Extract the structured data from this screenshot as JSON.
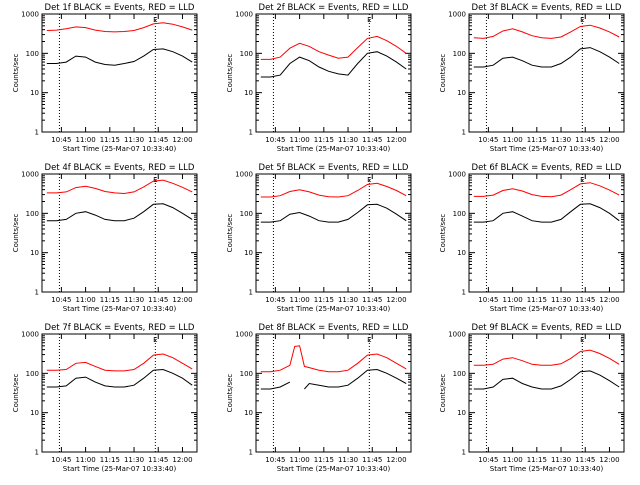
{
  "chart_data": {
    "type": "line",
    "layout": "3x3 grid of panels",
    "y_scale": "log",
    "ylim": [
      1,
      1000
    ],
    "y_ticks": [
      "1",
      "10",
      "100",
      "1000"
    ],
    "x_ticks": [
      "10:45",
      "11:00",
      "11:15",
      "11:30",
      "11:45",
      "12:00"
    ],
    "x_tick_hours": [
      10.75,
      11.0,
      11.25,
      11.5,
      11.75,
      12.0
    ],
    "xlim": [
      10.55,
      12.15
    ],
    "ylabel": "Counts/sec",
    "xlabel": "Start Time (25-Mar-07 10:33:40)",
    "grid": false,
    "colors": {
      "events": "#000000",
      "lld": "#ff0000"
    },
    "panels": [
      {
        "title": "Det 1f BLACK = Events, RED = LLD",
        "vlines": [
          10.73,
          11.72
        ],
        "flag": "E",
        "flag_x": 11.72,
        "x": [
          10.6,
          10.7,
          10.8,
          10.9,
          11.0,
          11.1,
          11.2,
          11.3,
          11.4,
          11.5,
          11.6,
          11.7,
          11.8,
          11.9,
          12.0,
          12.1
        ],
        "events": [
          55,
          55,
          60,
          85,
          80,
          60,
          52,
          50,
          55,
          62,
          85,
          125,
          130,
          110,
          85,
          60
        ],
        "lld": [
          380,
          390,
          420,
          470,
          450,
          390,
          360,
          350,
          360,
          380,
          450,
          560,
          600,
          550,
          470,
          390
        ]
      },
      {
        "title": "Det 2f BLACK = Events, RED = LLD",
        "vlines": [
          10.73,
          11.72
        ],
        "flag": "E",
        "flag_x": 11.72,
        "x": [
          10.6,
          10.7,
          10.8,
          10.9,
          11.0,
          11.1,
          11.2,
          11.3,
          11.4,
          11.5,
          11.6,
          11.7,
          11.8,
          11.9,
          12.0,
          12.1
        ],
        "events": [
          25,
          25,
          28,
          55,
          80,
          65,
          45,
          35,
          30,
          28,
          55,
          100,
          110,
          85,
          60,
          40
        ],
        "lld": [
          70,
          70,
          80,
          135,
          180,
          150,
          110,
          90,
          75,
          80,
          140,
          240,
          270,
          210,
          150,
          100
        ]
      },
      {
        "title": "Det 3f BLACK = Events, RED = LLD",
        "vlines": [
          10.73,
          11.72
        ],
        "flag": "E",
        "flag_x": 11.72,
        "x": [
          10.6,
          10.7,
          10.8,
          10.9,
          11.0,
          11.1,
          11.2,
          11.3,
          11.4,
          11.5,
          11.6,
          11.7,
          11.8,
          11.9,
          12.0,
          12.1
        ],
        "events": [
          45,
          45,
          50,
          75,
          80,
          65,
          50,
          45,
          45,
          55,
          80,
          130,
          140,
          110,
          80,
          55
        ],
        "lld": [
          250,
          240,
          270,
          370,
          420,
          350,
          280,
          250,
          240,
          260,
          350,
          480,
          520,
          440,
          350,
          260
        ]
      },
      {
        "title": "Det 4f BLACK = Events, RED = LLD",
        "vlines": [
          10.73,
          11.72
        ],
        "flag": "E",
        "flag_x": 11.72,
        "x": [
          10.6,
          10.7,
          10.8,
          10.9,
          11.0,
          11.1,
          11.2,
          11.3,
          11.4,
          11.5,
          11.6,
          11.7,
          11.8,
          11.9,
          12.0,
          12.1
        ],
        "events": [
          65,
          65,
          70,
          100,
          110,
          90,
          70,
          65,
          65,
          75,
          110,
          170,
          175,
          140,
          100,
          70
        ],
        "lld": [
          330,
          330,
          350,
          450,
          490,
          430,
          360,
          330,
          320,
          350,
          470,
          660,
          700,
          580,
          460,
          350
        ]
      },
      {
        "title": "Det 5f BLACK = Events, RED = LLD",
        "vlines": [
          10.73,
          11.72
        ],
        "flag": "E",
        "flag_x": 11.72,
        "x": [
          10.6,
          10.7,
          10.8,
          10.9,
          11.0,
          11.1,
          11.2,
          11.3,
          11.4,
          11.5,
          11.6,
          11.7,
          11.8,
          11.9,
          12.0,
          12.1
        ],
        "events": [
          60,
          60,
          65,
          95,
          105,
          85,
          65,
          60,
          60,
          70,
          105,
          165,
          170,
          135,
          95,
          65
        ],
        "lld": [
          260,
          260,
          280,
          360,
          400,
          350,
          290,
          265,
          260,
          280,
          380,
          540,
          580,
          480,
          380,
          280
        ]
      },
      {
        "title": "Det 6f BLACK = Events, RED = LLD",
        "vlines": [
          10.73,
          11.72
        ],
        "flag": "E",
        "flag_x": 11.72,
        "x": [
          10.6,
          10.7,
          10.8,
          10.9,
          11.0,
          11.1,
          11.2,
          11.3,
          11.4,
          11.5,
          11.6,
          11.7,
          11.8,
          11.9,
          12.0,
          12.1
        ],
        "events": [
          60,
          60,
          65,
          100,
          110,
          85,
          65,
          60,
          60,
          70,
          110,
          170,
          175,
          140,
          100,
          65
        ],
        "lld": [
          270,
          270,
          290,
          380,
          420,
          370,
          300,
          270,
          265,
          290,
          400,
          560,
          600,
          500,
          390,
          290
        ]
      },
      {
        "title": "Det 7f BLACK = Events, RED = LLD",
        "vlines": [
          10.73,
          11.72
        ],
        "flag": "E",
        "flag_x": 11.72,
        "x": [
          10.6,
          10.7,
          10.8,
          10.9,
          11.0,
          11.1,
          11.2,
          11.3,
          11.4,
          11.5,
          11.6,
          11.7,
          11.8,
          11.9,
          12.0,
          12.1
        ],
        "events": [
          45,
          45,
          48,
          75,
          80,
          60,
          48,
          45,
          45,
          50,
          75,
          120,
          125,
          100,
          75,
          50
        ],
        "lld": [
          120,
          120,
          125,
          180,
          190,
          150,
          120,
          115,
          115,
          125,
          180,
          290,
          310,
          250,
          180,
          130
        ]
      },
      {
        "title": "Det 8f BLACK = Events, RED = LLD",
        "vlines": [
          10.73,
          11.72
        ],
        "flag": "E",
        "flag_x": 11.72,
        "x": [
          10.6,
          10.7,
          10.8,
          10.9,
          10.95,
          11.0,
          11.05,
          11.1,
          11.2,
          11.3,
          11.4,
          11.5,
          11.6,
          11.7,
          11.8,
          11.9,
          12.0,
          12.1
        ],
        "events": [
          40,
          40,
          45,
          60,
          null,
          null,
          40,
          55,
          50,
          45,
          45,
          50,
          75,
          120,
          125,
          100,
          75,
          55
        ],
        "lld": [
          110,
          110,
          120,
          160,
          480,
          500,
          150,
          140,
          120,
          110,
          110,
          120,
          180,
          290,
          310,
          250,
          180,
          130
        ]
      },
      {
        "title": "Det 9f BLACK = Events, RED = LLD",
        "vlines": [
          10.73,
          11.72
        ],
        "flag": "E",
        "flag_x": 11.72,
        "x": [
          10.6,
          10.7,
          10.8,
          10.9,
          11.0,
          11.1,
          11.2,
          11.3,
          11.4,
          11.5,
          11.6,
          11.7,
          11.8,
          11.9,
          12.0,
          12.1
        ],
        "events": [
          40,
          40,
          45,
          70,
          75,
          55,
          45,
          40,
          40,
          48,
          70,
          110,
          115,
          90,
          65,
          45
        ],
        "lld": [
          160,
          160,
          170,
          230,
          250,
          210,
          170,
          160,
          160,
          175,
          240,
          360,
          390,
          320,
          240,
          170
        ]
      }
    ]
  }
}
